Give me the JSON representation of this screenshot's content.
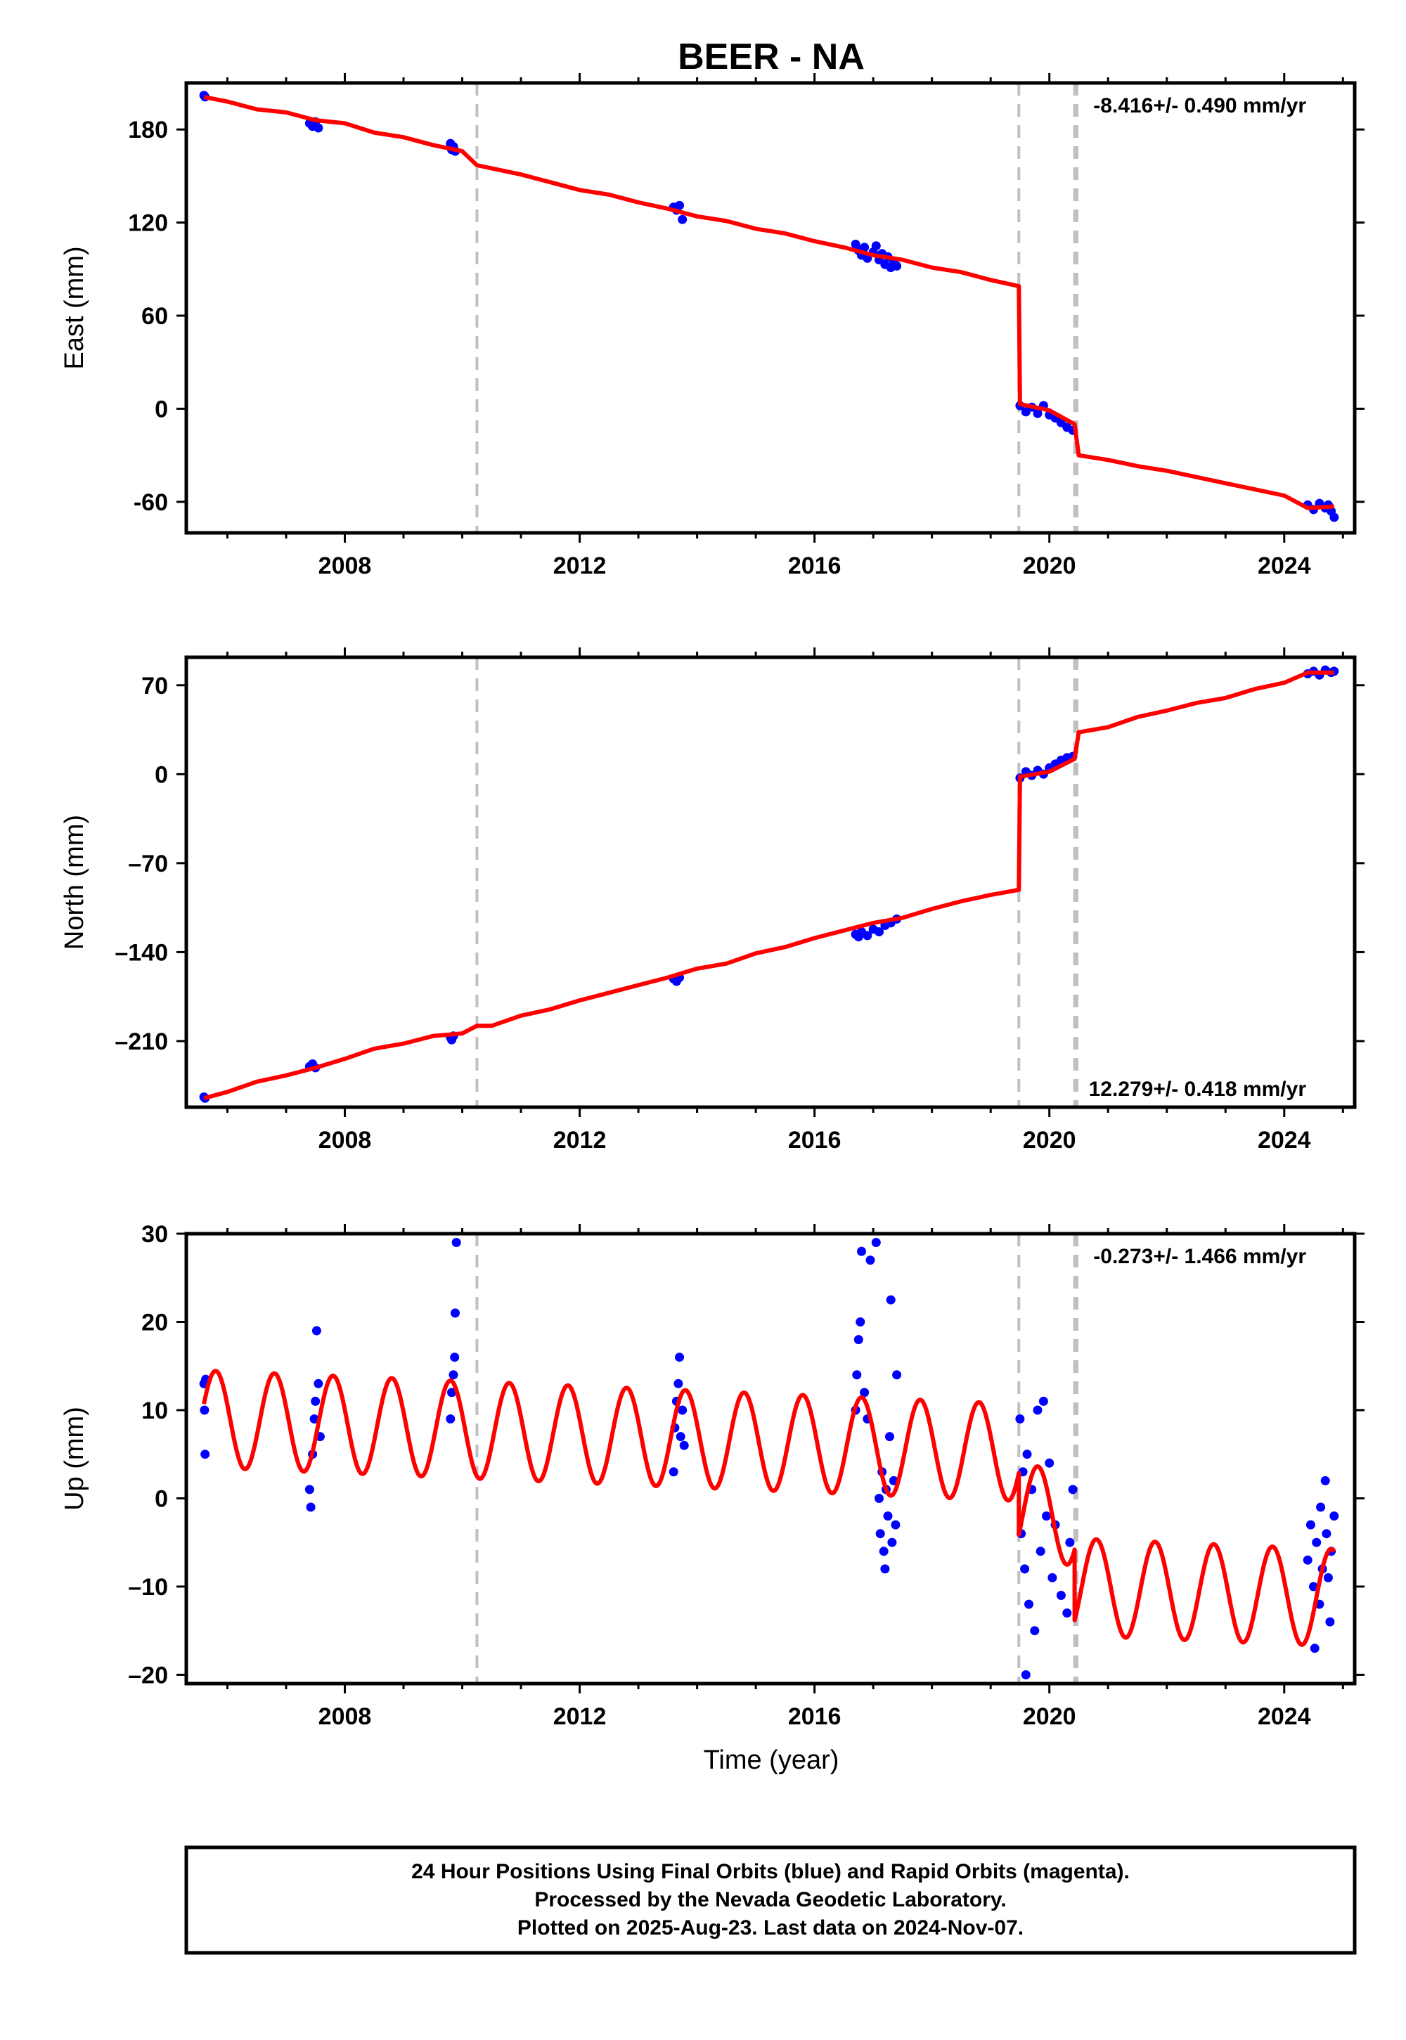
{
  "title": "BEER - NA",
  "xlabel": "Time (year)",
  "footer": {
    "lines": [
      "24 Hour Positions Using Final Orbits (blue) and Rapid Orbits (magenta).",
      "Processed by the Nevada Geodetic Laboratory.",
      "Plotted on 2025-Aug-23. Last data on 2024-Nov-07."
    ]
  },
  "colors": {
    "data_points": "#0000ff",
    "model_line": "#ff0000",
    "steps": "#c0c0c0",
    "frame": "#000000"
  },
  "chart_data": [
    {
      "type": "scatter",
      "name": "east",
      "ylabel": "East (mm)",
      "xlim": [
        2005.3,
        2025.2
      ],
      "ylim": [
        -80,
        210
      ],
      "xticks": [
        2008,
        2012,
        2016,
        2020,
        2024
      ],
      "yticks": [
        -60,
        0,
        60,
        120,
        180
      ],
      "rate_label": "-8.416+/- 0.490 mm/yr",
      "rate_position": "top-right",
      "offset_epochs": [
        2010.25,
        2019.48,
        2020.43,
        2020.47
      ],
      "model": {
        "x": [
          2005.6,
          2006.0,
          2006.5,
          2007.0,
          2007.5,
          2008.0,
          2008.5,
          2009.0,
          2009.5,
          2010.0,
          2010.25,
          2010.5,
          2011.0,
          2011.5,
          2012.0,
          2012.5,
          2013.0,
          2013.5,
          2014.0,
          2014.5,
          2015.0,
          2015.5,
          2016.0,
          2016.5,
          2017.0,
          2017.5,
          2018.0,
          2018.5,
          2019.0,
          2019.48,
          2019.5,
          2020.0,
          2020.43,
          2020.5,
          2021.0,
          2021.5,
          2022.0,
          2022.5,
          2023.0,
          2023.5,
          2024.0,
          2024.4,
          2024.85
        ],
        "y": [
          201,
          198,
          193,
          191,
          186,
          184,
          178,
          175,
          170,
          166,
          157,
          155,
          151,
          146,
          141,
          138,
          133,
          129,
          124,
          121,
          116,
          113,
          108,
          104,
          99,
          96,
          91,
          88,
          83,
          79,
          3,
          -1,
          -10,
          -30,
          -33,
          -37,
          -40,
          -44,
          -48,
          -52,
          -56,
          -64,
          -63
        ]
      },
      "observations": [
        {
          "x": 2005.6,
          "y": 202
        },
        {
          "x": 2005.62,
          "y": 201
        },
        {
          "x": 2007.4,
          "y": 184
        },
        {
          "x": 2007.45,
          "y": 182
        },
        {
          "x": 2007.5,
          "y": 185
        },
        {
          "x": 2007.55,
          "y": 181
        },
        {
          "x": 2009.8,
          "y": 171
        },
        {
          "x": 2009.82,
          "y": 167
        },
        {
          "x": 2009.85,
          "y": 169
        },
        {
          "x": 2009.88,
          "y": 166
        },
        {
          "x": 2013.6,
          "y": 130
        },
        {
          "x": 2013.65,
          "y": 128
        },
        {
          "x": 2013.7,
          "y": 131
        },
        {
          "x": 2013.75,
          "y": 122
        },
        {
          "x": 2016.7,
          "y": 106
        },
        {
          "x": 2016.75,
          "y": 102
        },
        {
          "x": 2016.8,
          "y": 99
        },
        {
          "x": 2016.85,
          "y": 104
        },
        {
          "x": 2016.9,
          "y": 97
        },
        {
          "x": 2017.0,
          "y": 101
        },
        {
          "x": 2017.05,
          "y": 105
        },
        {
          "x": 2017.1,
          "y": 96
        },
        {
          "x": 2017.15,
          "y": 100
        },
        {
          "x": 2017.2,
          "y": 93
        },
        {
          "x": 2017.25,
          "y": 98
        },
        {
          "x": 2017.3,
          "y": 91
        },
        {
          "x": 2017.35,
          "y": 95
        },
        {
          "x": 2017.4,
          "y": 92
        },
        {
          "x": 2019.5,
          "y": 2
        },
        {
          "x": 2019.6,
          "y": -2
        },
        {
          "x": 2019.7,
          "y": 1
        },
        {
          "x": 2019.8,
          "y": -3
        },
        {
          "x": 2019.9,
          "y": 2
        },
        {
          "x": 2020.0,
          "y": -4
        },
        {
          "x": 2020.1,
          "y": -6
        },
        {
          "x": 2020.2,
          "y": -9
        },
        {
          "x": 2020.3,
          "y": -12
        },
        {
          "x": 2020.4,
          "y": -14
        },
        {
          "x": 2024.4,
          "y": -62
        },
        {
          "x": 2024.5,
          "y": -65
        },
        {
          "x": 2024.6,
          "y": -61
        },
        {
          "x": 2024.7,
          "y": -64
        },
        {
          "x": 2024.75,
          "y": -62
        },
        {
          "x": 2024.8,
          "y": -66
        },
        {
          "x": 2024.85,
          "y": -70
        }
      ]
    },
    {
      "type": "scatter",
      "name": "north",
      "ylabel": "North (mm)",
      "xlim": [
        2005.3,
        2025.2
      ],
      "ylim": [
        -262,
        92
      ],
      "xticks": [
        2008,
        2012,
        2016,
        2020,
        2024
      ],
      "yticks": [
        -210,
        -140,
        -70,
        0,
        70
      ],
      "ytick_labels": [
        "–210",
        "–140",
        "–70",
        "0",
        "70"
      ],
      "rate_label": "12.279+/- 0.418 mm/yr",
      "rate_position": "bottom-right",
      "offset_epochs": [
        2010.25,
        2019.48,
        2020.43,
        2020.47
      ],
      "model": {
        "x": [
          2005.6,
          2006.0,
          2006.5,
          2007.0,
          2007.5,
          2008.0,
          2008.5,
          2009.0,
          2009.5,
          2010.0,
          2010.25,
          2010.5,
          2011.0,
          2011.5,
          2012.0,
          2012.5,
          2013.0,
          2013.5,
          2014.0,
          2014.5,
          2015.0,
          2015.5,
          2016.0,
          2016.5,
          2017.0,
          2017.5,
          2018.0,
          2018.5,
          2019.0,
          2019.48,
          2019.5,
          2020.0,
          2020.43,
          2020.5,
          2021.0,
          2021.5,
          2022.0,
          2022.5,
          2023.0,
          2023.5,
          2024.0,
          2024.4,
          2024.85
        ],
        "y": [
          -255,
          -250,
          -242,
          -237,
          -231,
          -224,
          -216,
          -212,
          -206,
          -204,
          -198,
          -198,
          -190,
          -185,
          -178,
          -172,
          -166,
          -160,
          -153,
          -149,
          -141,
          -136,
          -129,
          -123,
          -117,
          -113,
          -106,
          -100,
          -95,
          -91,
          -2,
          2,
          12,
          33,
          37,
          45,
          50,
          56,
          60,
          67,
          72,
          80,
          80
        ]
      },
      "observations": [
        {
          "x": 2005.6,
          "y": -254
        },
        {
          "x": 2005.62,
          "y": -255
        },
        {
          "x": 2007.4,
          "y": -230
        },
        {
          "x": 2007.45,
          "y": -228
        },
        {
          "x": 2007.5,
          "y": -231
        },
        {
          "x": 2009.8,
          "y": -207
        },
        {
          "x": 2009.82,
          "y": -209
        },
        {
          "x": 2009.85,
          "y": -206
        },
        {
          "x": 2013.6,
          "y": -161
        },
        {
          "x": 2013.65,
          "y": -163
        },
        {
          "x": 2013.7,
          "y": -160
        },
        {
          "x": 2016.7,
          "y": -126
        },
        {
          "x": 2016.75,
          "y": -128
        },
        {
          "x": 2016.8,
          "y": -124
        },
        {
          "x": 2016.9,
          "y": -127
        },
        {
          "x": 2017.0,
          "y": -122
        },
        {
          "x": 2017.1,
          "y": -124
        },
        {
          "x": 2017.2,
          "y": -119
        },
        {
          "x": 2017.3,
          "y": -117
        },
        {
          "x": 2017.4,
          "y": -114
        },
        {
          "x": 2019.5,
          "y": -3
        },
        {
          "x": 2019.6,
          "y": 2
        },
        {
          "x": 2019.7,
          "y": -1
        },
        {
          "x": 2019.8,
          "y": 3
        },
        {
          "x": 2019.9,
          "y": 0
        },
        {
          "x": 2020.0,
          "y": 5
        },
        {
          "x": 2020.1,
          "y": 8
        },
        {
          "x": 2020.2,
          "y": 11
        },
        {
          "x": 2020.3,
          "y": 13
        },
        {
          "x": 2020.4,
          "y": 14
        },
        {
          "x": 2024.4,
          "y": 79
        },
        {
          "x": 2024.5,
          "y": 81
        },
        {
          "x": 2024.6,
          "y": 78
        },
        {
          "x": 2024.7,
          "y": 82
        },
        {
          "x": 2024.8,
          "y": 80
        },
        {
          "x": 2024.85,
          "y": 81
        }
      ]
    },
    {
      "type": "scatter",
      "name": "up",
      "ylabel": "Up (mm)",
      "xlabel": "Time (year)",
      "xlim": [
        2005.3,
        2025.2
      ],
      "ylim": [
        -21,
        30
      ],
      "xticks": [
        2008,
        2012,
        2016,
        2020,
        2024
      ],
      "yticks": [
        -20,
        -10,
        0,
        10,
        20,
        30
      ],
      "ytick_labels": [
        "–20",
        "–10",
        "0",
        "10",
        "20",
        "30"
      ],
      "rate_label": "-0.273+/- 1.466 mm/yr",
      "rate_position": "top-right",
      "offset_epochs": [
        2010.25,
        2019.48,
        2020.43,
        2020.47
      ],
      "model": {
        "trend": -0.273,
        "annual_amplitude": 5.5,
        "segments": [
          {
            "x_start": 2005.6,
            "x_end": 2019.48,
            "offset": 9.0
          },
          {
            "x_start": 2019.48,
            "x_end": 2020.43,
            "offset": 2.0
          },
          {
            "x_start": 2020.43,
            "x_end": 2024.85,
            "offset": -6.0
          }
        ]
      },
      "observations": [
        {
          "x": 2005.6,
          "y": 13
        },
        {
          "x": 2005.61,
          "y": 10
        },
        {
          "x": 2005.62,
          "y": 5
        },
        {
          "x": 2005.63,
          "y": 13.5
        },
        {
          "x": 2007.4,
          "y": 1
        },
        {
          "x": 2007.42,
          "y": -1
        },
        {
          "x": 2007.45,
          "y": 5
        },
        {
          "x": 2007.48,
          "y": 9
        },
        {
          "x": 2007.5,
          "y": 11
        },
        {
          "x": 2007.52,
          "y": 19
        },
        {
          "x": 2007.55,
          "y": 13
        },
        {
          "x": 2007.58,
          "y": 7
        },
        {
          "x": 2009.8,
          "y": 9
        },
        {
          "x": 2009.82,
          "y": 12
        },
        {
          "x": 2009.85,
          "y": 14
        },
        {
          "x": 2009.87,
          "y": 16
        },
        {
          "x": 2009.88,
          "y": 21
        },
        {
          "x": 2009.9,
          "y": 29
        },
        {
          "x": 2013.6,
          "y": 3
        },
        {
          "x": 2013.62,
          "y": 8
        },
        {
          "x": 2013.65,
          "y": 11
        },
        {
          "x": 2013.68,
          "y": 13
        },
        {
          "x": 2013.7,
          "y": 16
        },
        {
          "x": 2013.72,
          "y": 7
        },
        {
          "x": 2013.75,
          "y": 10
        },
        {
          "x": 2013.78,
          "y": 6
        },
        {
          "x": 2016.7,
          "y": 10
        },
        {
          "x": 2016.72,
          "y": 14
        },
        {
          "x": 2016.75,
          "y": 18
        },
        {
          "x": 2016.78,
          "y": 20
        },
        {
          "x": 2016.8,
          "y": 28
        },
        {
          "x": 2016.85,
          "y": 12
        },
        {
          "x": 2016.9,
          "y": 9
        },
        {
          "x": 2016.95,
          "y": 27
        },
        {
          "x": 2017.05,
          "y": 29
        },
        {
          "x": 2017.1,
          "y": 0
        },
        {
          "x": 2017.12,
          "y": -4
        },
        {
          "x": 2017.15,
          "y": 3
        },
        {
          "x": 2017.18,
          "y": -6
        },
        {
          "x": 2017.2,
          "y": -8
        },
        {
          "x": 2017.22,
          "y": 1
        },
        {
          "x": 2017.25,
          "y": -2
        },
        {
          "x": 2017.28,
          "y": 7
        },
        {
          "x": 2017.3,
          "y": 22.5
        },
        {
          "x": 2017.32,
          "y": -5
        },
        {
          "x": 2017.35,
          "y": 2
        },
        {
          "x": 2017.38,
          "y": -3
        },
        {
          "x": 2017.4,
          "y": 14
        },
        {
          "x": 2019.5,
          "y": 9
        },
        {
          "x": 2019.52,
          "y": -4
        },
        {
          "x": 2019.55,
          "y": 3
        },
        {
          "x": 2019.58,
          "y": -8
        },
        {
          "x": 2019.6,
          "y": -20
        },
        {
          "x": 2019.62,
          "y": 5
        },
        {
          "x": 2019.65,
          "y": -12
        },
        {
          "x": 2019.7,
          "y": 1
        },
        {
          "x": 2019.75,
          "y": -15
        },
        {
          "x": 2019.8,
          "y": 10
        },
        {
          "x": 2019.85,
          "y": -6
        },
        {
          "x": 2019.9,
          "y": 11
        },
        {
          "x": 2019.95,
          "y": -2
        },
        {
          "x": 2020.0,
          "y": 4
        },
        {
          "x": 2020.05,
          "y": -9
        },
        {
          "x": 2020.1,
          "y": -3
        },
        {
          "x": 2020.2,
          "y": -11
        },
        {
          "x": 2020.3,
          "y": -13
        },
        {
          "x": 2020.35,
          "y": -5
        },
        {
          "x": 2020.4,
          "y": 1
        },
        {
          "x": 2024.4,
          "y": -7
        },
        {
          "x": 2024.45,
          "y": -3
        },
        {
          "x": 2024.5,
          "y": -10
        },
        {
          "x": 2024.52,
          "y": -17
        },
        {
          "x": 2024.55,
          "y": -5
        },
        {
          "x": 2024.6,
          "y": -12
        },
        {
          "x": 2024.62,
          "y": -1
        },
        {
          "x": 2024.65,
          "y": -8
        },
        {
          "x": 2024.7,
          "y": 2
        },
        {
          "x": 2024.72,
          "y": -4
        },
        {
          "x": 2024.75,
          "y": -9
        },
        {
          "x": 2024.78,
          "y": -14
        },
        {
          "x": 2024.8,
          "y": -6
        },
        {
          "x": 2024.85,
          "y": -2
        }
      ]
    }
  ]
}
